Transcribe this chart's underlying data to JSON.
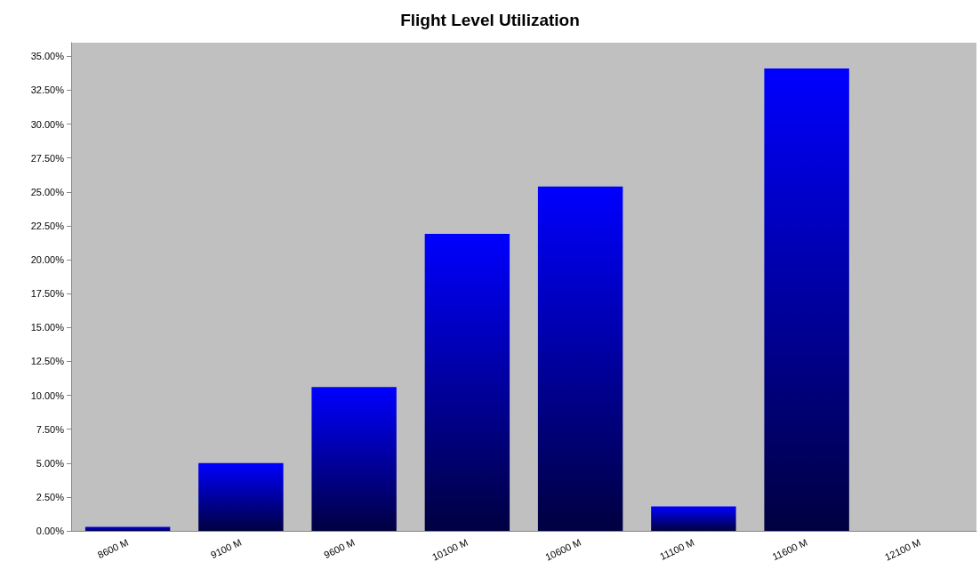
{
  "chart_data": {
    "type": "bar",
    "title": "Flight Level Utilization",
    "categories": [
      "8600 M",
      "9100 M",
      "9600 M",
      "10100 M",
      "10600 M",
      "11100 M",
      "11600 M",
      "12100 M"
    ],
    "values": [
      0.3,
      5.0,
      10.6,
      21.9,
      25.4,
      1.8,
      34.1,
      0
    ],
    "color": "#0000ff",
    "ylim": [
      0,
      36
    ],
    "yticks": [
      {
        "value": 0,
        "label": "0.00%"
      },
      {
        "value": 2.5,
        "label": "2.50%"
      },
      {
        "value": 5,
        "label": "5.00%"
      },
      {
        "value": 7.5,
        "label": "7.50%"
      },
      {
        "value": 10,
        "label": "10.00%"
      },
      {
        "value": 12.5,
        "label": "12.50%"
      },
      {
        "value": 15,
        "label": "15.00%"
      },
      {
        "value": 17.5,
        "label": "17.50%"
      },
      {
        "value": 20,
        "label": "20.00%"
      },
      {
        "value": 22.5,
        "label": "22.50%"
      },
      {
        "value": 25,
        "label": "25.00%"
      },
      {
        "value": 27.5,
        "label": "27.50%"
      },
      {
        "value": 30,
        "label": "30.00%"
      },
      {
        "value": 32.5,
        "label": "32.50%"
      },
      {
        "value": 35,
        "label": "35.00%"
      }
    ],
    "grid": false
  }
}
